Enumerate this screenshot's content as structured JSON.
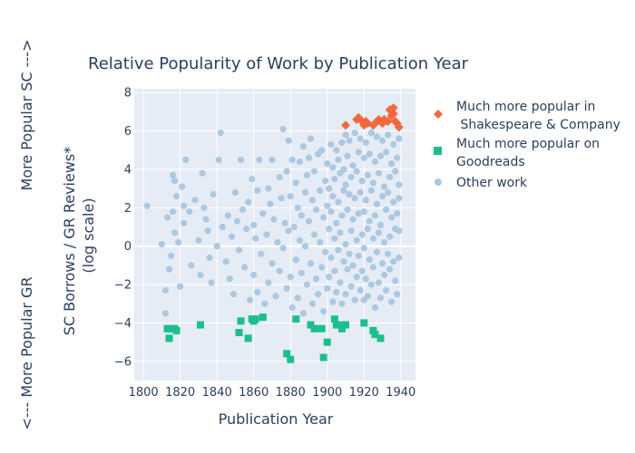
{
  "chart_data": {
    "type": "scatter",
    "title": "Relative Popularity of Work by Publication Year",
    "xlabel": "Publication Year",
    "ylabel_line1": "SC Borrows / GR Reviews*",
    "ylabel_line2": "(log scale)",
    "side_label_top": "More Popular SC --->",
    "side_label_bottom": "<--- More Popular GR",
    "xlim": [
      1795,
      1948
    ],
    "ylim": [
      -7,
      8.2
    ],
    "x_ticks": [
      1800,
      1820,
      1840,
      1860,
      1880,
      1900,
      1920,
      1940
    ],
    "y_ticks": [
      -6,
      -4,
      -2,
      0,
      2,
      4,
      6,
      8
    ],
    "grid": true,
    "legend_position": "right",
    "colors": {
      "plot_bg": "#e5ecf6",
      "grid": "#ffffff",
      "sc": "#f0693b",
      "gr": "#1bbf8a",
      "other": "#adc8e0"
    },
    "series": [
      {
        "name_line1": "Much more popular in",
        "name_line2": " Shakespeare & Company",
        "marker": "diamond",
        "color": "#f0693b",
        "points": [
          [
            1910,
            6.3
          ],
          [
            1916,
            6.6
          ],
          [
            1917,
            6.7
          ],
          [
            1919,
            6.5
          ],
          [
            1920,
            6.3
          ],
          [
            1921,
            6.5
          ],
          [
            1922,
            6.4
          ],
          [
            1925,
            6.3
          ],
          [
            1927,
            6.5
          ],
          [
            1928,
            6.6
          ],
          [
            1930,
            6.4
          ],
          [
            1931,
            6.6
          ],
          [
            1933,
            6.5
          ],
          [
            1934,
            7.1
          ],
          [
            1935,
            6.8
          ],
          [
            1936,
            7.2
          ],
          [
            1937,
            6.5
          ],
          [
            1938,
            6.4
          ],
          [
            1939,
            6.2
          ],
          [
            1936,
            6.9
          ]
        ]
      },
      {
        "name_line1": "Much more popular on",
        "name_line2": "Goodreads",
        "marker": "square",
        "color": "#1bbf8a",
        "points": [
          [
            1813,
            -4.3
          ],
          [
            1814,
            -4.8
          ],
          [
            1815,
            -4.3
          ],
          [
            1817,
            -4.3
          ],
          [
            1818,
            -4.4
          ],
          [
            1831,
            -4.1
          ],
          [
            1852,
            -4.5
          ],
          [
            1853,
            -3.9
          ],
          [
            1857,
            -4.8
          ],
          [
            1859,
            -3.8
          ],
          [
            1860,
            -3.9
          ],
          [
            1861,
            -3.8
          ],
          [
            1865,
            -3.7
          ],
          [
            1878,
            -5.6
          ],
          [
            1880,
            -5.9
          ],
          [
            1883,
            -3.8
          ],
          [
            1891,
            -4.1
          ],
          [
            1893,
            -4.3
          ],
          [
            1897,
            -4.3
          ],
          [
            1898,
            -5.8
          ],
          [
            1900,
            -5.0
          ],
          [
            1904,
            -3.8
          ],
          [
            1905,
            -4.1
          ],
          [
            1906,
            -4.1
          ],
          [
            1908,
            -4.3
          ],
          [
            1910,
            -4.1
          ],
          [
            1920,
            -4.0
          ],
          [
            1925,
            -4.4
          ],
          [
            1926,
            -4.6
          ],
          [
            1929,
            -4.8
          ]
        ]
      },
      {
        "name_line1": "Other work",
        "name_line2": "",
        "marker": "circle",
        "color": "#adc8e0",
        "points": [
          [
            1802,
            2.1
          ],
          [
            1810,
            0.1
          ],
          [
            1812,
            -3.5
          ],
          [
            1812,
            -2.3
          ],
          [
            1813,
            1.5
          ],
          [
            1814,
            -1.2
          ],
          [
            1815,
            -0.5
          ],
          [
            1816,
            1.8
          ],
          [
            1816,
            3.7
          ],
          [
            1817,
            3.4
          ],
          [
            1817,
            0.7
          ],
          [
            1818,
            2.6
          ],
          [
            1819,
            0.2
          ],
          [
            1820,
            -2.1
          ],
          [
            1821,
            3.1
          ],
          [
            1822,
            2.1
          ],
          [
            1822,
            1.2
          ],
          [
            1823,
            4.5
          ],
          [
            1825,
            1.8
          ],
          [
            1826,
            -1.0
          ],
          [
            1828,
            2.4
          ],
          [
            1830,
            0.3
          ],
          [
            1831,
            -1.5
          ],
          [
            1832,
            3.8
          ],
          [
            1833,
            2.0
          ],
          [
            1834,
            1.4
          ],
          [
            1835,
            0.8
          ],
          [
            1836,
            -0.6
          ],
          [
            1837,
            -1.9
          ],
          [
            1838,
            2.7
          ],
          [
            1840,
            0.0
          ],
          [
            1841,
            4.5
          ],
          [
            1842,
            5.9
          ],
          [
            1843,
            1.0
          ],
          [
            1845,
            -0.8
          ],
          [
            1846,
            1.6
          ],
          [
            1847,
            -1.7
          ],
          [
            1848,
            0.5
          ],
          [
            1849,
            -2.5
          ],
          [
            1850,
            2.8
          ],
          [
            1851,
            1.3
          ],
          [
            1852,
            -0.2
          ],
          [
            1853,
            4.5
          ],
          [
            1854,
            1.9
          ],
          [
            1855,
            -1.1
          ],
          [
            1856,
            0.9
          ],
          [
            1857,
            2.3
          ],
          [
            1858,
            -2.8
          ],
          [
            1859,
            3.5
          ],
          [
            1860,
            1.1
          ],
          [
            1860,
            -1.5
          ],
          [
            1861,
            0.4
          ],
          [
            1862,
            2.9
          ],
          [
            1862,
            -2.4
          ],
          [
            1863,
            4.5
          ],
          [
            1864,
            -0.4
          ],
          [
            1865,
            1.7
          ],
          [
            1866,
            -3.0
          ],
          [
            1867,
            0.6
          ],
          [
            1868,
            3.0
          ],
          [
            1868,
            -1.9
          ],
          [
            1869,
            2.2
          ],
          [
            1870,
            -0.9
          ],
          [
            1870,
            4.5
          ],
          [
            1871,
            1.4
          ],
          [
            1872,
            -2.6
          ],
          [
            1873,
            0.2
          ],
          [
            1874,
            3.6
          ],
          [
            1874,
            -1.3
          ],
          [
            1875,
            2.5
          ],
          [
            1876,
            6.1
          ],
          [
            1876,
            -0.1
          ],
          [
            1877,
            1.2
          ],
          [
            1878,
            -2.2
          ],
          [
            1878,
            3.9
          ],
          [
            1879,
            0.8
          ],
          [
            1879,
            5.5
          ],
          [
            1880,
            -1.6
          ],
          [
            1880,
            2.6
          ],
          [
            1881,
            4.5
          ],
          [
            1881,
            -3.2
          ],
          [
            1882,
            1.0
          ],
          [
            1883,
            -0.7
          ],
          [
            1883,
            3.3
          ],
          [
            1884,
            2.0
          ],
          [
            1884,
            -2.7
          ],
          [
            1885,
            0.3
          ],
          [
            1885,
            4.4
          ],
          [
            1886,
            1.6
          ],
          [
            1886,
            -1.4
          ],
          [
            1887,
            5.2
          ],
          [
            1887,
            -3.5
          ],
          [
            1888,
            2.8
          ],
          [
            1888,
            0.0
          ],
          [
            1889,
            3.7
          ],
          [
            1889,
            -2.0
          ],
          [
            1890,
            1.3
          ],
          [
            1890,
            4.6
          ],
          [
            1891,
            -0.9
          ],
          [
            1891,
            5.6
          ],
          [
            1892,
            2.4
          ],
          [
            1892,
            -3.0
          ],
          [
            1893,
            0.6
          ],
          [
            1893,
            3.9
          ],
          [
            1894,
            -1.7
          ],
          [
            1894,
            1.9
          ],
          [
            1895,
            4.8
          ],
          [
            1895,
            -2.5
          ],
          [
            1896,
            0.2
          ],
          [
            1896,
            2.9
          ],
          [
            1897,
            -1.1
          ],
          [
            1897,
            5.0
          ],
          [
            1898,
            1.5
          ],
          [
            1898,
            -3.4
          ],
          [
            1899,
            3.4
          ],
          [
            1899,
            -0.3
          ],
          [
            1900,
            2.1
          ],
          [
            1900,
            4.3
          ],
          [
            1900,
            -2.2
          ],
          [
            1901,
            0.9
          ],
          [
            1901,
            3.0
          ],
          [
            1901,
            -1.6
          ],
          [
            1902,
            5.3
          ],
          [
            1902,
            1.8
          ],
          [
            1902,
            -0.6
          ],
          [
            1903,
            2.6
          ],
          [
            1903,
            -2.9
          ],
          [
            1903,
            4.1
          ],
          [
            1904,
            0.4
          ],
          [
            1904,
            3.5
          ],
          [
            1904,
            -1.3
          ],
          [
            1905,
            1.2
          ],
          [
            1905,
            5.0
          ],
          [
            1905,
            -2.4
          ],
          [
            1906,
            2.3
          ],
          [
            1906,
            -0.2
          ],
          [
            1906,
            4.5
          ],
          [
            1907,
            3.8
          ],
          [
            1907,
            0.7
          ],
          [
            1907,
            -1.9
          ],
          [
            1908,
            1.6
          ],
          [
            1908,
            5.4
          ],
          [
            1908,
            -3.0
          ],
          [
            1909,
            2.9
          ],
          [
            1909,
            -0.8
          ],
          [
            1909,
            4.0
          ],
          [
            1910,
            0.1
          ],
          [
            1910,
            3.2
          ],
          [
            1910,
            -2.5
          ],
          [
            1910,
            5.8
          ],
          [
            1911,
            1.9
          ],
          [
            1911,
            -1.2
          ],
          [
            1911,
            4.7
          ],
          [
            1912,
            2.7
          ],
          [
            1912,
            -0.4
          ],
          [
            1912,
            5.5
          ],
          [
            1913,
            0.8
          ],
          [
            1913,
            3.6
          ],
          [
            1913,
            -2.1
          ],
          [
            1914,
            1.4
          ],
          [
            1914,
            4.2
          ],
          [
            1914,
            -1.0
          ],
          [
            1915,
            2.5
          ],
          [
            1915,
            5.9
          ],
          [
            1915,
            -2.8
          ],
          [
            1916,
            0.3
          ],
          [
            1916,
            3.9
          ],
          [
            1916,
            -1.6
          ],
          [
            1917,
            1.7
          ],
          [
            1917,
            4.9
          ],
          [
            1917,
            -0.5
          ],
          [
            1918,
            2.8
          ],
          [
            1918,
            -2.3
          ],
          [
            1918,
            5.6
          ],
          [
            1919,
            0.6
          ],
          [
            1919,
            3.4
          ],
          [
            1919,
            -1.3
          ],
          [
            1920,
            1.8
          ],
          [
            1920,
            4.6
          ],
          [
            1920,
            -0.1
          ],
          [
            1920,
            -2.8
          ],
          [
            1921,
            2.4
          ],
          [
            1921,
            5.4
          ],
          [
            1921,
            -1.7
          ],
          [
            1922,
            0.9
          ],
          [
            1922,
            3.7
          ],
          [
            1922,
            -2.6
          ],
          [
            1923,
            1.3
          ],
          [
            1923,
            4.8
          ],
          [
            1923,
            -0.7
          ],
          [
            1924,
            2.9
          ],
          [
            1924,
            5.9
          ],
          [
            1924,
            -2.0
          ],
          [
            1925,
            0.4
          ],
          [
            1925,
            3.3
          ],
          [
            1925,
            -1.1
          ],
          [
            1926,
            1.6
          ],
          [
            1926,
            4.4
          ],
          [
            1926,
            -3.2
          ],
          [
            1927,
            2.2
          ],
          [
            1927,
            5.7
          ],
          [
            1927,
            -0.3
          ],
          [
            1928,
            0.7
          ],
          [
            1928,
            3.8
          ],
          [
            1928,
            -1.9
          ],
          [
            1929,
            1.1
          ],
          [
            1929,
            4.7
          ],
          [
            1929,
            -2.7
          ],
          [
            1930,
            2.6
          ],
          [
            1930,
            5.5
          ],
          [
            1930,
            -0.9
          ],
          [
            1931,
            0.2
          ],
          [
            1931,
            3.1
          ],
          [
            1931,
            -1.5
          ],
          [
            1932,
            1.9
          ],
          [
            1932,
            4.9
          ],
          [
            1932,
            -2.3
          ],
          [
            1933,
            2.8
          ],
          [
            1933,
            5.8
          ],
          [
            1933,
            -0.4
          ],
          [
            1934,
            0.5
          ],
          [
            1934,
            3.6
          ],
          [
            1934,
            -1.2
          ],
          [
            1935,
            1.5
          ],
          [
            1935,
            4.3
          ],
          [
            1935,
            -2.9
          ],
          [
            1936,
            2.3
          ],
          [
            1936,
            5.3
          ],
          [
            1936,
            -0.8
          ],
          [
            1937,
            0.9
          ],
          [
            1937,
            3.9
          ],
          [
            1937,
            -1.8
          ],
          [
            1938,
            1.7
          ],
          [
            1938,
            4.6
          ],
          [
            1938,
            -2.5
          ],
          [
            1939,
            2.5
          ],
          [
            1939,
            5.6
          ],
          [
            1939,
            -0.6
          ],
          [
            1939,
            0.8
          ],
          [
            1939,
            3.2
          ]
        ]
      }
    ]
  }
}
